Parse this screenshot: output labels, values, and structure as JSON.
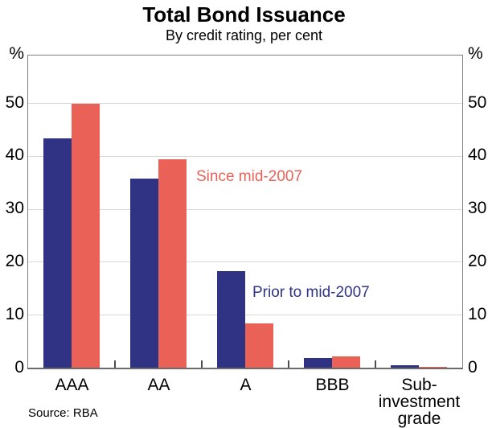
{
  "chart_data": {
    "type": "bar",
    "title": "Total Bond Issuance",
    "subtitle": "By credit rating, per cent",
    "axis_unit": "%",
    "categories": [
      "AAA",
      "AA",
      "A",
      "BBB",
      "Sub-investment\ngrade"
    ],
    "series": [
      {
        "name": "Prior to mid-2007",
        "color": "#303384",
        "values": [
          43.4,
          35.8,
          18.3,
          1.9,
          0.5
        ]
      },
      {
        "name": "Since mid-2007",
        "color": "#e96157",
        "values": [
          49.9,
          39.4,
          8.4,
          2.1,
          0.15
        ]
      }
    ],
    "ylim": [
      0,
      59
    ],
    "yticks": [
      0,
      10,
      20,
      30,
      40,
      50
    ],
    "grid": "horizontal-light-gray",
    "legend_position": "in-plot text annotations",
    "annotations": [
      {
        "text": "Since mid-2007",
        "color": "#e96157"
      },
      {
        "text": "Prior to mid-2007",
        "color": "#303384"
      }
    ],
    "source": "Source: RBA",
    "colors": {
      "gridline": "#d9d9d9",
      "frame": "#7f7f7f",
      "text": "#000000"
    }
  }
}
